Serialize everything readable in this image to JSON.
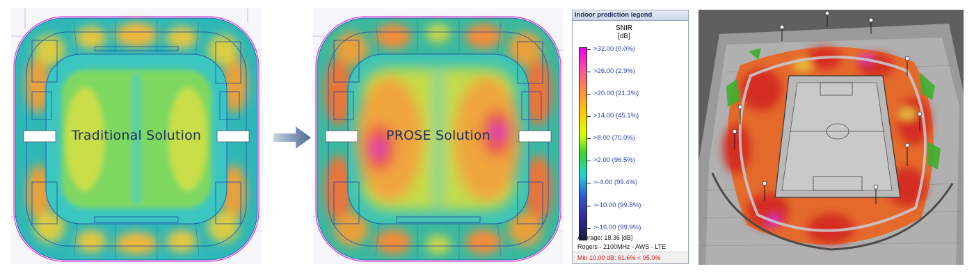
{
  "panels": {
    "left_label": "Traditional Solution",
    "right_label": "PROSE Solution"
  },
  "legend": {
    "title": "Indoor prediction legend",
    "metric": "SNIR",
    "unit": "[dB]",
    "entries": [
      {
        "label": ">32.00 (0.0%)"
      },
      {
        "label": ">26.00 (2.9%)"
      },
      {
        "label": ">20.00 (21.3%)"
      },
      {
        "label": ">14.00 (45.1%)"
      },
      {
        "label": ">8.00 (70.0%)"
      },
      {
        "label": ">2.00 (96.5%)"
      },
      {
        "label": ">-4.00 (99.4%)"
      },
      {
        "label": ">-10.00 (99.8%)"
      },
      {
        "label": ">-16.00 (99.9%)"
      }
    ],
    "average": "Average: 18.36 [dB]",
    "network": "Rogers - 2100MHz - AWS - LTE",
    "warning": "Min 10.00 dB: 61.6% < 95.0%"
  },
  "colors": {
    "legend_text": "#2b3fb0",
    "warning": "#e01818",
    "label": "#1e2e5c",
    "arrow": "#4c6a93"
  }
}
